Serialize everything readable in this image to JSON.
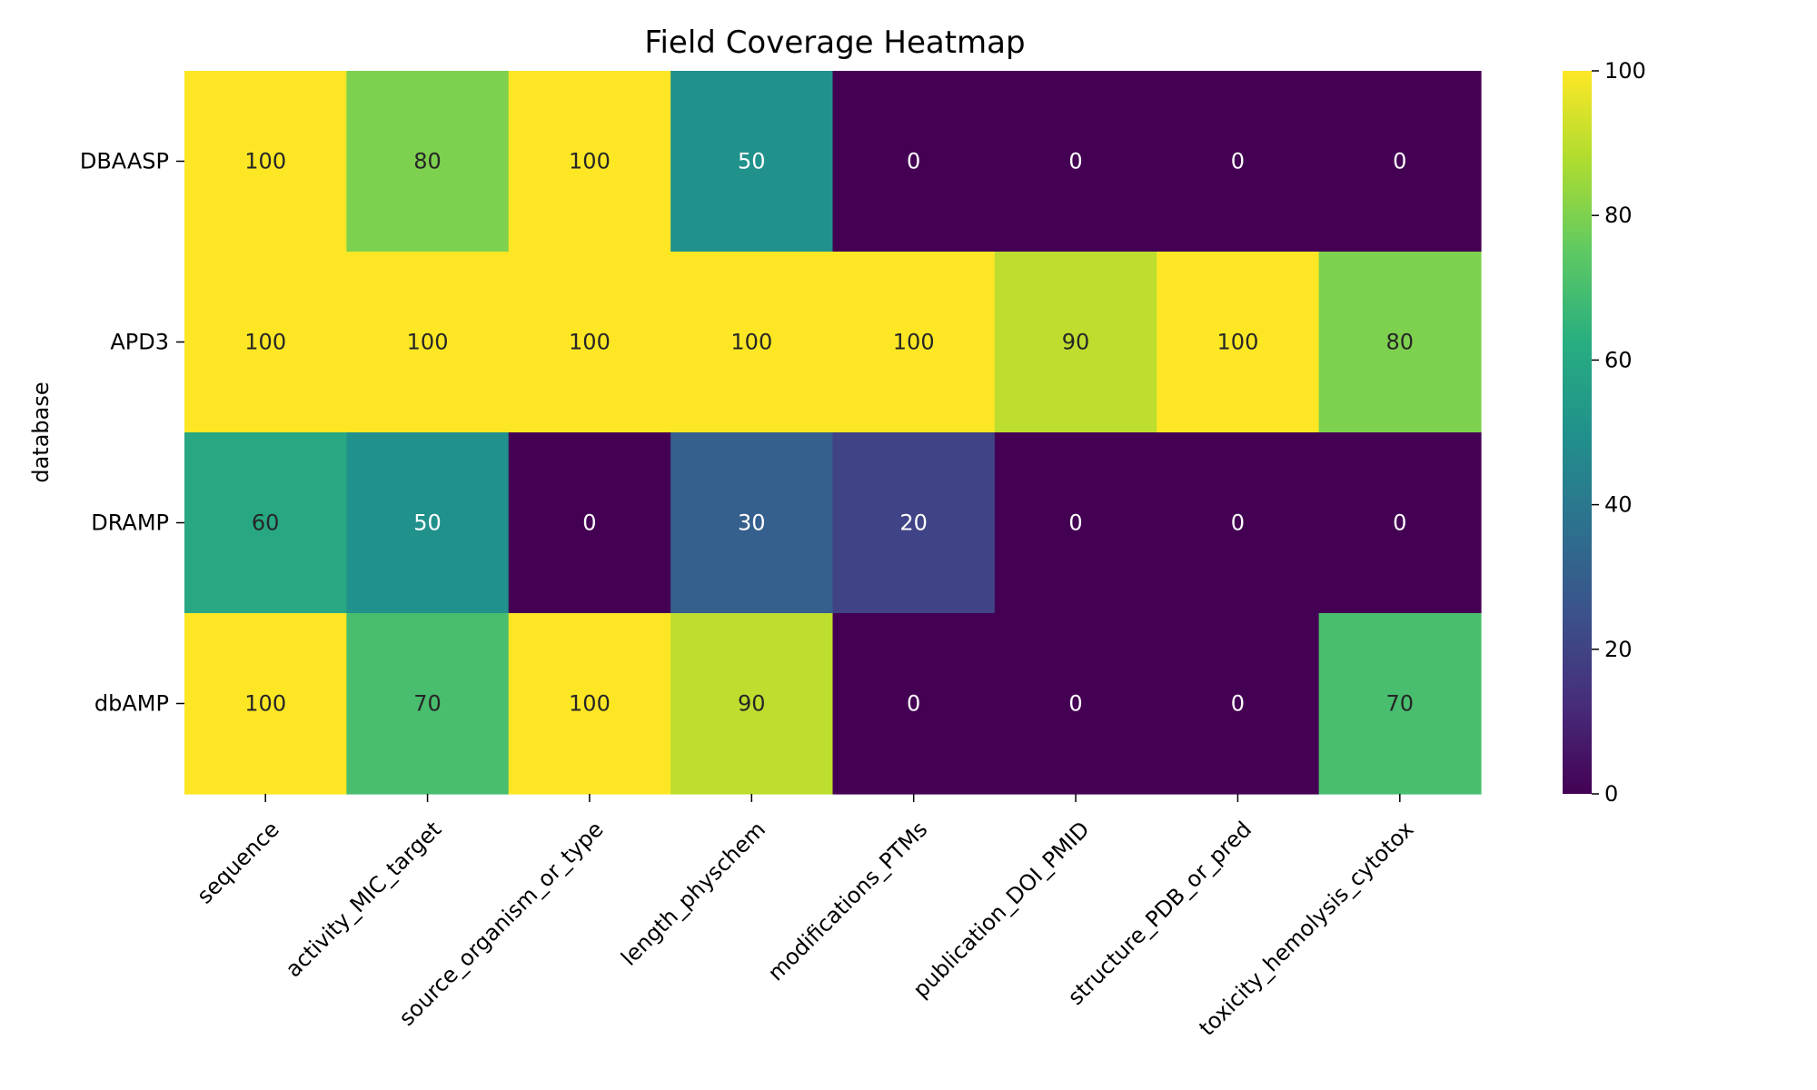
{
  "chart_data": {
    "type": "heatmap",
    "title": "Field Coverage Heatmap",
    "xlabel": "",
    "ylabel": "database",
    "rows": [
      "DBAASP",
      "APD3",
      "DRAMP",
      "dbAMP"
    ],
    "columns": [
      "sequence",
      "activity_MIC_target",
      "source_organism_or_type",
      "length_physchem",
      "modifications_PTMs",
      "publication_DOI_PMID",
      "structure_PDB_or_pred",
      "toxicity_hemolysis_cytotox"
    ],
    "values": [
      [
        100,
        80,
        100,
        50,
        0,
        0,
        0,
        0
      ],
      [
        100,
        100,
        100,
        100,
        100,
        90,
        100,
        80
      ],
      [
        60,
        50,
        0,
        30,
        20,
        0,
        0,
        0
      ],
      [
        100,
        70,
        100,
        90,
        0,
        0,
        0,
        70
      ]
    ],
    "colormap": "viridis",
    "vmin": 0,
    "vmax": 100,
    "colorbar_ticks": [
      0,
      20,
      40,
      60,
      80,
      100
    ],
    "annotations": true
  }
}
